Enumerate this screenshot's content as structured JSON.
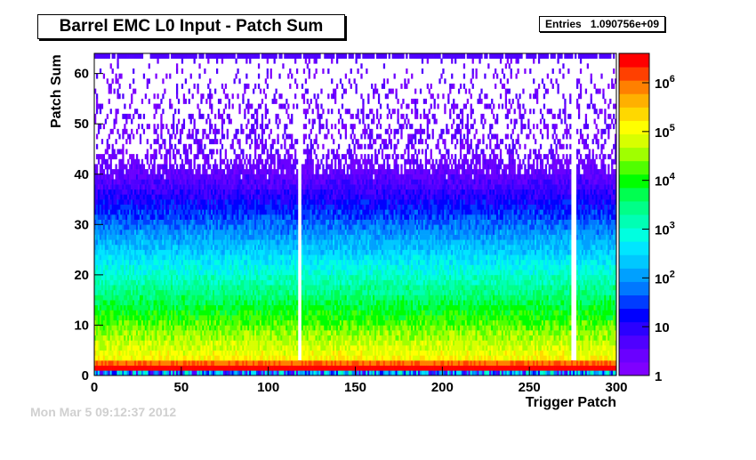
{
  "title": "Barrel EMC L0 Input - Patch Sum",
  "stats": {
    "label": "Entries",
    "value": "1.090756e+09"
  },
  "footer_text": "Mon Mar  5 09:12:37 2012",
  "chart_data": {
    "type": "heatmap",
    "title": "Barrel EMC L0 Input - Patch Sum",
    "xlabel": "Trigger Patch",
    "ylabel": "Patch Sum",
    "xlim": [
      0,
      300
    ],
    "ylim": [
      0,
      64
    ],
    "x_ticks": [
      0,
      50,
      100,
      150,
      200,
      250,
      300
    ],
    "y_ticks": [
      0,
      10,
      20,
      30,
      40,
      50,
      60
    ],
    "z_scale": "log",
    "z_range": [
      1,
      4000000
    ],
    "z_ticks": [
      {
        "value": 1,
        "label": "1"
      },
      {
        "value": 10,
        "label": "10"
      },
      {
        "value": 100,
        "label": "10^2"
      },
      {
        "value": 1000,
        "label": "10^3"
      },
      {
        "value": 10000,
        "label": "10^4"
      },
      {
        "value": 100000,
        "label": "10^5"
      },
      {
        "value": 1000000,
        "label": "10^6"
      }
    ],
    "entries": "1.090756e+09",
    "colors": {
      "palette": [
        "#7f00ff",
        "#6a00ff",
        "#4f00ff",
        "#2b00ff",
        "#0000ff",
        "#003cff",
        "#0078ff",
        "#00a0ff",
        "#00c8ff",
        "#00e6ff",
        "#00ffe0",
        "#00ffb4",
        "#00ff88",
        "#00ff50",
        "#00ff00",
        "#50ff00",
        "#a0ff00",
        "#d8ff00",
        "#ffff00",
        "#ffd800",
        "#ffb000",
        "#ff8000",
        "#ff4000",
        "#ff0000"
      ]
    }
  }
}
